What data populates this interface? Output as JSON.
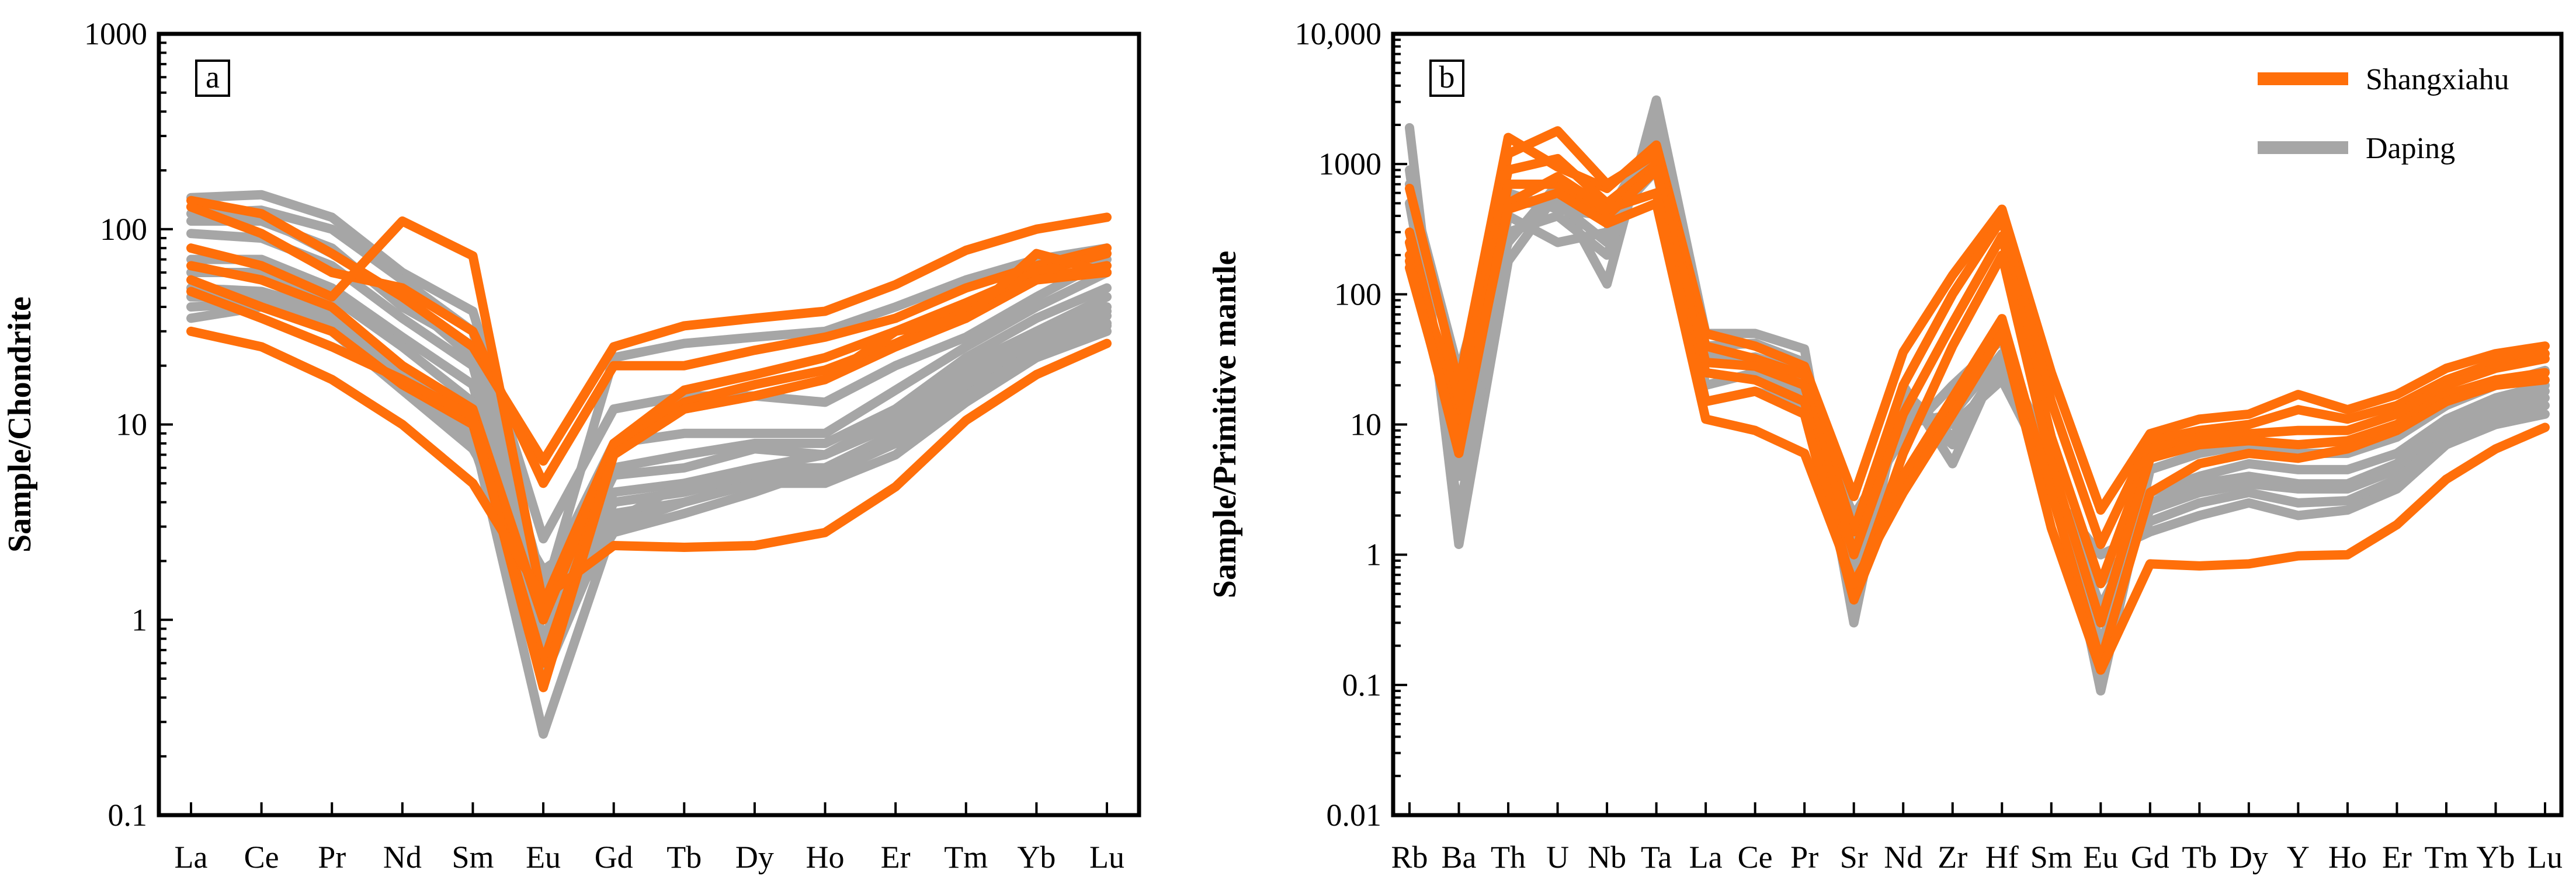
{
  "colors": {
    "shangxiahu": "#FF6F0A",
    "daping": "#A6A6A6",
    "axis": "#000000"
  },
  "legend": [
    {
      "name": "Shangxiahu",
      "color": "#FF6F0A"
    },
    {
      "name": "Daping",
      "color": "#A6A6A6"
    }
  ],
  "chart_data": [
    {
      "type": "line",
      "panel_label": "a",
      "title": "",
      "xlabel": "",
      "ylabel": "Sample/Chondrite",
      "yscale": "log",
      "ylim": [
        0.1,
        1000
      ],
      "ytick_labels": [
        "0.1",
        "1",
        "10",
        "100",
        "1000"
      ],
      "categories": [
        "La",
        "Ce",
        "Pr",
        "Nd",
        "Sm",
        "Eu",
        "Gd",
        "Tb",
        "Dy",
        "Ho",
        "Er",
        "Tm",
        "Yb",
        "Lu"
      ],
      "series": [
        {
          "name": "Daping",
          "color": "#A6A6A6",
          "values": [
            145,
            150,
            115,
            60,
            38,
            2.6,
            12,
            14,
            14,
            13,
            20,
            28,
            45,
            70
          ]
        },
        {
          "name": "Daping",
          "color": "#A6A6A6",
          "values": [
            120,
            125,
            100,
            55,
            30,
            1.5,
            8,
            9,
            9,
            9,
            15,
            25,
            40,
            60
          ]
        },
        {
          "name": "Daping",
          "color": "#A6A6A6",
          "values": [
            110,
            110,
            80,
            40,
            25,
            1.2,
            6,
            7,
            8,
            8,
            12,
            22,
            35,
            50
          ]
        },
        {
          "name": "Daping",
          "color": "#A6A6A6",
          "values": [
            95,
            90,
            65,
            35,
            20,
            1.0,
            5.5,
            6,
            7.5,
            7,
            11,
            20,
            30,
            45
          ]
        },
        {
          "name": "Daping",
          "color": "#A6A6A6",
          "values": [
            70,
            70,
            50,
            28,
            16,
            0.8,
            4.5,
            5,
            6,
            6,
            9,
            17,
            27,
            38
          ]
        },
        {
          "name": "Daping",
          "color": "#A6A6A6",
          "values": [
            60,
            60,
            45,
            25,
            13,
            0.6,
            4,
            4.5,
            5.5,
            5.5,
            8,
            15,
            25,
            33
          ]
        },
        {
          "name": "Daping",
          "color": "#A6A6A6",
          "values": [
            50,
            48,
            38,
            20,
            11,
            0.5,
            3.5,
            4,
            5,
            5,
            7,
            13,
            22,
            30
          ]
        },
        {
          "name": "Daping",
          "color": "#A6A6A6",
          "values": [
            45,
            45,
            35,
            18,
            9,
            0.26,
            3,
            4,
            5,
            6,
            8,
            14,
            24,
            32
          ]
        },
        {
          "name": "Daping",
          "color": "#A6A6A6",
          "values": [
            40,
            42,
            32,
            16,
            8,
            0.7,
            2.8,
            3.5,
            4.5,
            6,
            9,
            16,
            28,
            36
          ]
        },
        {
          "name": "Daping",
          "color": "#A6A6A6",
          "values": [
            35,
            40,
            30,
            15,
            7.5,
            1.8,
            3.2,
            5,
            6,
            7,
            10,
            18,
            30,
            40
          ]
        },
        {
          "name": "Daping",
          "color": "#A6A6A6",
          "values": [
            130,
            115,
            75,
            45,
            22,
            1.3,
            22,
            26,
            28,
            30,
            40,
            55,
            70,
            80
          ]
        },
        {
          "name": "Shangxiahu",
          "color": "#FF6F0A",
          "values": [
            140,
            120,
            75,
            45,
            25,
            6.5,
            25,
            32,
            35,
            38,
            52,
            78,
            100,
            115
          ]
        },
        {
          "name": "Shangxiahu",
          "color": "#FF6F0A",
          "values": [
            130,
            95,
            60,
            50,
            30,
            5.0,
            20,
            20,
            24,
            28,
            35,
            50,
            65,
            80
          ]
        },
        {
          "name": "Shangxiahu",
          "color": "#FF6F0A",
          "values": [
            80,
            65,
            45,
            110,
            73,
            1.2,
            8,
            15,
            18,
            22,
            30,
            42,
            60,
            75
          ]
        },
        {
          "name": "Shangxiahu",
          "color": "#FF6F0A",
          "values": [
            65,
            55,
            40,
            20,
            12,
            1.0,
            7.5,
            13,
            16,
            19,
            26,
            38,
            55,
            65
          ]
        },
        {
          "name": "Shangxiahu",
          "color": "#FF6F0A",
          "values": [
            55,
            40,
            30,
            16,
            10,
            0.6,
            7,
            12,
            14,
            17,
            25,
            35,
            55,
            60
          ]
        },
        {
          "name": "Shangxiahu",
          "color": "#FF6F0A",
          "values": [
            48,
            35,
            25,
            17,
            11,
            0.45,
            7,
            12,
            14,
            17,
            30,
            35,
            75,
            60
          ]
        },
        {
          "name": "Shangxiahu",
          "color": "#FF6F0A",
          "values": [
            30,
            25,
            17,
            10,
            5,
            1.3,
            2.4,
            2.35,
            2.4,
            2.8,
            4.8,
            10.5,
            18,
            26
          ]
        }
      ]
    },
    {
      "type": "line",
      "panel_label": "b",
      "title": "",
      "xlabel": "",
      "ylabel": "Sample/Primitive mantle",
      "yscale": "log",
      "ylim": [
        0.01,
        10000
      ],
      "ytick_labels": [
        "0.01",
        "0.1",
        "1",
        "10",
        "100",
        "1000",
        "10,000"
      ],
      "categories": [
        "Rb",
        "Ba",
        "Th",
        "U",
        "Nb",
        "Ta",
        "La",
        "Ce",
        "Pr",
        "Sr",
        "Nd",
        "Zr",
        "Hf",
        "Sm",
        "Eu",
        "Gd",
        "Tb",
        "Dy",
        "Y",
        "Ho",
        "Er",
        "Tm",
        "Yb",
        "Lu"
      ],
      "series": [
        {
          "name": "Daping",
          "color": "#A6A6A6",
          "values": [
            1900,
            1.2,
            180,
            600,
            120,
            3100,
            50,
            50,
            38,
            0.3,
            20,
            5,
            35,
            6,
            0.09,
            4.5,
            6,
            7,
            6,
            6,
            8,
            14,
            20,
            26
          ]
        },
        {
          "name": "Daping",
          "color": "#A6A6A6",
          "values": [
            900,
            2.0,
            300,
            400,
            200,
            2000,
            40,
            42,
            30,
            0.5,
            15,
            7,
            28,
            5,
            0.2,
            3,
            4,
            5,
            4.5,
            4.5,
            6,
            11,
            16,
            20
          ]
        },
        {
          "name": "Daping",
          "color": "#A6A6A6",
          "values": [
            500,
            4.0,
            400,
            250,
            300,
            1500,
            30,
            33,
            25,
            0.8,
            12,
            10,
            22,
            4,
            0.4,
            2.2,
            3,
            3.5,
            3.2,
            3.2,
            4.5,
            9,
            13,
            16
          ]
        },
        {
          "name": "Daping",
          "color": "#A6A6A6",
          "values": [
            300,
            8.0,
            500,
            500,
            250,
            1200,
            20,
            25,
            18,
            1.2,
            10,
            12,
            35,
            3.5,
            0.6,
            1.8,
            2.5,
            3,
            2.5,
            2.6,
            3.8,
            8,
            11,
            14
          ]
        },
        {
          "name": "Daping",
          "color": "#A6A6A6",
          "values": [
            200,
            15,
            250,
            700,
            350,
            900,
            15,
            18,
            14,
            2.0,
            8,
            20,
            45,
            3,
            1.0,
            1.5,
            2,
            2.5,
            2.0,
            2.2,
            3.2,
            7,
            10,
            12
          ]
        },
        {
          "name": "Daping",
          "color": "#A6A6A6",
          "values": [
            700,
            25,
            600,
            450,
            400,
            1800,
            35,
            30,
            22,
            1.5,
            18,
            8,
            30,
            4.5,
            0.3,
            2.5,
            3.5,
            4,
            3.5,
            3.5,
            5,
            10,
            14,
            18
          ]
        },
        {
          "name": "Shangxiahu",
          "color": "#FF6F0A",
          "values": [
            650,
            20,
            1600,
            950,
            650,
            1400,
            50,
            40,
            28,
            2.8,
            36,
            140,
            450,
            25,
            2.2,
            8.5,
            11,
            12,
            17,
            13,
            17,
            27,
            35,
            40
          ]
        },
        {
          "name": "Shangxiahu",
          "color": "#FF6F0A",
          "values": [
            300,
            10,
            1200,
            1800,
            700,
            1200,
            40,
            32,
            24,
            1.5,
            20,
            100,
            380,
            15,
            1.2,
            7.5,
            9,
            10,
            13,
            11,
            14,
            22,
            30,
            35
          ]
        },
        {
          "name": "Shangxiahu",
          "color": "#FF6F0A",
          "values": [
            200,
            15,
            900,
            1100,
            500,
            1000,
            30,
            28,
            20,
            1.0,
            12,
            60,
            280,
            8,
            0.6,
            6.5,
            8,
            8.5,
            9,
            9,
            12,
            20,
            27,
            32
          ]
        },
        {
          "name": "Shangxiahu",
          "color": "#FF6F0A",
          "values": [
            250,
            8,
            700,
            700,
            400,
            900,
            25,
            22,
            15,
            0.5,
            6,
            40,
            200,
            5,
            0.3,
            5.5,
            7,
            7.5,
            7,
            7.5,
            10,
            17,
            22,
            25
          ]
        },
        {
          "name": "Shangxiahu",
          "color": "#FF6F0A",
          "values": [
            180,
            6,
            500,
            800,
            450,
            600,
            15,
            18,
            12,
            0.45,
            4,
            16,
            65,
            3,
            0.15,
            3,
            5,
            6,
            5.5,
            6.5,
            9,
            15,
            20,
            22
          ]
        },
        {
          "name": "Shangxiahu",
          "color": "#FF6F0A",
          "values": [
            160,
            7,
            450,
            600,
            350,
            500,
            11,
            9,
            6,
            0.6,
            3,
            12,
            50,
            1.6,
            0.13,
            0.85,
            0.82,
            0.85,
            0.98,
            1.0,
            1.7,
            3.8,
            6.5,
            9.5
          ]
        }
      ]
    }
  ]
}
